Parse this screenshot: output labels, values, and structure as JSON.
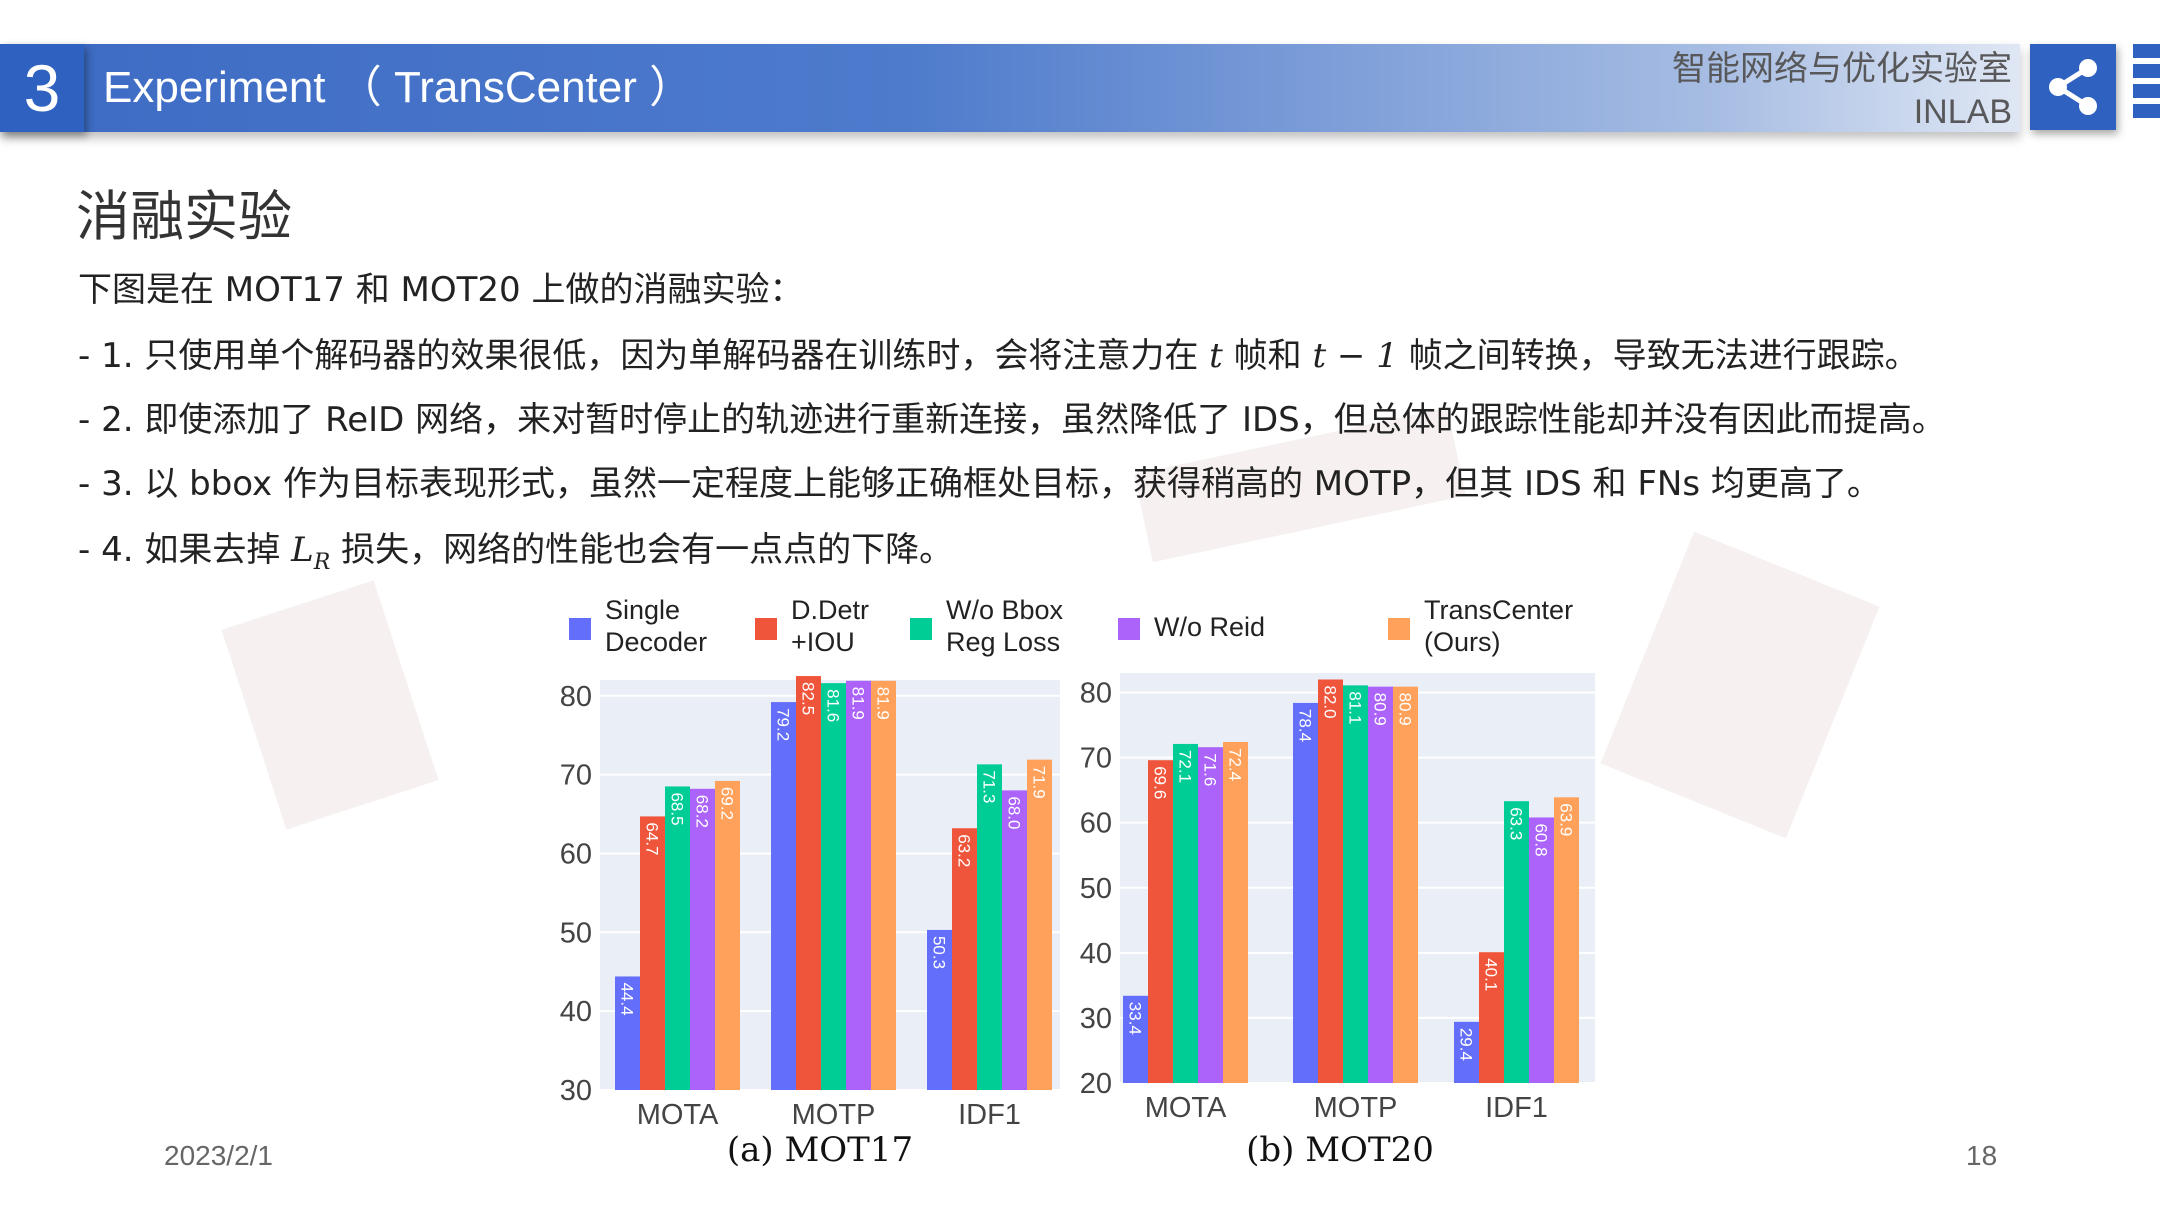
{
  "header": {
    "section_number": "3",
    "title": "Experiment （ TransCenter ）",
    "lab_name": "智能网络与优化实验室",
    "lab_code": "INLAB",
    "share_icon": "share-icon"
  },
  "content": {
    "section_title": "消融实验",
    "intro": "下图是在 MOT17 和 MOT20 上做的消融实验：",
    "item1_a": "- 1. 只使用单个解码器的效果很低，因为单解码器在训练时，会将注意力在 ",
    "item1_t1": "t",
    "item1_b": " 帧和 ",
    "item1_t2": "t − 1",
    "item1_c": " 帧之间转换，导致无法进行跟踪。",
    "item2": "- 2. 即使添加了 ReID 网络，来对暂时停止的轨迹进行重新连接，虽然降低了 IDS，但总体的跟踪性能却并没有因此而提高。",
    "item3": "- 3. 以 bbox 作为目标表现形式，虽然一定程度上能够正确框处目标，获得稍高的 MOTP，但其 IDS 和 FNs 均更高了。",
    "item4_a": "- 4. 如果去掉 ",
    "item4_sym": "L",
    "item4_sub": "R",
    "item4_b": " 损失，网络的性能也会有一点点的下降。"
  },
  "footer": {
    "date": "2023/2/1",
    "page": "18"
  },
  "chart_data": {
    "type": "bar",
    "legend": [
      {
        "lines": [
          "Single",
          "Decoder"
        ],
        "color": "#636efa"
      },
      {
        "lines": [
          "D.Detr",
          "+IOU"
        ],
        "color": "#ef553b"
      },
      {
        "lines": [
          "W/o Bbox",
          "Reg Loss"
        ],
        "color": "#00cc96"
      },
      {
        "lines": [
          "W/o Reid"
        ],
        "color": "#ab63fa"
      },
      {
        "lines": [
          "TransCenter",
          "(Ours)"
        ],
        "color": "#ffa15a"
      }
    ],
    "panels": [
      {
        "caption": "(a) MOT17",
        "categories": [
          "MOTA",
          "MOTP",
          "IDF1"
        ],
        "ylim": [
          30,
          82
        ],
        "yticks": [
          30,
          40,
          50,
          60,
          70,
          80
        ],
        "series": [
          {
            "name": "Single Decoder",
            "values": [
              44.4,
              79.2,
              50.3
            ]
          },
          {
            "name": "D.Detr +IOU",
            "values": [
              64.7,
              82.5,
              63.2
            ]
          },
          {
            "name": "W/o Bbox Reg Loss",
            "values": [
              68.5,
              81.6,
              71.3
            ]
          },
          {
            "name": "W/o Reid",
            "values": [
              68.2,
              81.9,
              68.0
            ]
          },
          {
            "name": "TransCenter (Ours)",
            "values": [
              69.2,
              81.9,
              71.9
            ]
          }
        ]
      },
      {
        "caption": "(b) MOT20",
        "categories": [
          "MOTA",
          "MOTP",
          "IDF1"
        ],
        "ylim": [
          20,
          83
        ],
        "yticks": [
          20,
          30,
          40,
          50,
          60,
          70,
          80
        ],
        "series": [
          {
            "name": "Single Decoder",
            "values": [
              33.4,
              78.4,
              29.4
            ]
          },
          {
            "name": "D.Detr +IOU",
            "values": [
              69.6,
              82.0,
              40.1
            ]
          },
          {
            "name": "W/o Bbox Reg Loss",
            "values": [
              72.1,
              81.1,
              63.3
            ]
          },
          {
            "name": "W/o Reid",
            "values": [
              71.6,
              80.9,
              60.8
            ]
          },
          {
            "name": "TransCenter (Ours)",
            "values": [
              72.4,
              80.9,
              63.9
            ]
          }
        ]
      }
    ]
  }
}
